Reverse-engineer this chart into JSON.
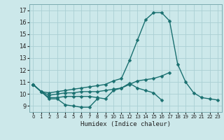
{
  "xlabel": "Humidex (Indice chaleur)",
  "bg_color": "#cce8ea",
  "grid_color": "#aacfd4",
  "line_color": "#1a7070",
  "x": [
    0,
    1,
    2,
    3,
    4,
    5,
    6,
    7,
    8,
    9,
    10,
    11,
    12,
    13,
    14,
    15,
    16,
    17,
    18,
    19,
    20,
    21,
    22,
    23
  ],
  "line1": [
    10.8,
    10.2,
    9.6,
    9.6,
    9.1,
    9.0,
    8.9,
    8.9,
    9.6,
    null,
    null,
    null,
    null,
    null,
    null,
    null,
    null,
    null,
    null,
    null,
    null,
    null,
    null,
    null
  ],
  "line2": [
    10.8,
    10.2,
    9.7,
    9.7,
    9.8,
    9.8,
    9.8,
    9.8,
    9.7,
    9.6,
    10.3,
    10.5,
    10.9,
    10.5,
    10.3,
    10.1,
    9.5,
    null,
    null,
    null,
    null,
    null,
    null,
    null
  ],
  "line3": [
    10.8,
    10.2,
    9.9,
    10.0,
    10.1,
    10.1,
    10.2,
    10.2,
    10.2,
    10.3,
    10.4,
    10.5,
    10.8,
    11.1,
    11.2,
    11.3,
    11.5,
    11.8,
    null,
    null,
    null,
    null,
    null,
    null
  ],
  "line4": [
    10.8,
    10.2,
    10.1,
    10.2,
    10.3,
    10.4,
    10.5,
    10.6,
    10.7,
    10.8,
    11.1,
    11.3,
    12.8,
    14.5,
    16.2,
    16.8,
    16.8,
    16.1,
    12.5,
    11.0,
    10.1,
    9.7,
    9.6,
    9.5
  ],
  "ylim": [
    8.5,
    17.5
  ],
  "yticks": [
    9,
    10,
    11,
    12,
    13,
    14,
    15,
    16,
    17
  ],
  "xticks": [
    0,
    1,
    2,
    3,
    4,
    5,
    6,
    7,
    8,
    9,
    10,
    11,
    12,
    13,
    14,
    15,
    16,
    17,
    18,
    19,
    20,
    21,
    22,
    23
  ],
  "markersize": 2.5,
  "linewidth": 1.0
}
